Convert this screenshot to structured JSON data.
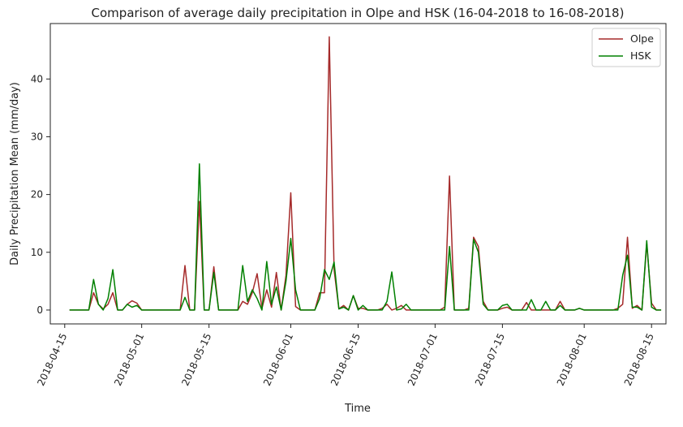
{
  "chart_data": {
    "type": "line",
    "title": "Comparison of average daily precipitation in Olpe and HSK (16-04-2018 to 16-08-2018)",
    "xlabel": "Time",
    "ylabel": "Daily Precipitation Mean (mm/day)",
    "x_start": "2018-04-16",
    "xlim": [
      "2018-04-12",
      "2018-08-18"
    ],
    "ylim": [
      -2.4,
      49.6
    ],
    "y_ticks": [
      0,
      10,
      20,
      30,
      40
    ],
    "x_ticks": [
      "2018-04-15",
      "2018-05-01",
      "2018-05-15",
      "2018-06-01",
      "2018-06-15",
      "2018-07-01",
      "2018-07-15",
      "2018-08-01",
      "2018-08-15"
    ],
    "grid": false,
    "legend": "top-right",
    "series": [
      {
        "name": "Olpe",
        "color": "#a52a2a",
        "values": [
          0,
          0,
          0,
          0,
          0,
          3,
          1,
          0.2,
          1,
          3,
          0,
          0,
          1,
          1.6,
          1.2,
          0,
          0,
          0,
          0,
          0,
          0,
          0,
          0,
          0,
          7.7,
          0,
          0,
          18.8,
          0,
          0,
          7.5,
          0,
          0,
          0,
          0,
          0,
          1.5,
          1,
          3,
          6.3,
          0.3,
          3.5,
          0.5,
          6.5,
          0,
          6,
          20.3,
          0.6,
          0,
          0,
          0,
          0,
          3,
          3,
          47.3,
          7,
          0.2,
          0.8,
          0,
          2.5,
          0.3,
          0.3,
          0,
          0,
          0,
          0.3,
          1,
          0,
          0.3,
          0.8,
          0,
          0,
          0,
          0,
          0,
          0,
          0,
          0,
          0.5,
          23.2,
          0,
          0,
          0,
          0.3,
          12.6,
          11,
          1.5,
          0,
          0,
          0,
          0.3,
          0.5,
          0,
          0,
          0,
          1.3,
          0,
          0,
          0,
          0,
          0,
          0,
          1.5,
          0,
          0,
          0,
          0.3,
          0,
          0,
          0,
          0,
          0,
          0,
          0,
          0.3,
          1,
          12.6,
          0.3,
          0.8,
          0,
          11.5,
          1.2,
          0,
          0
        ]
      },
      {
        "name": "HSK",
        "color": "#008000",
        "values": [
          0,
          0,
          0,
          0,
          0,
          5.3,
          1,
          0,
          2,
          7,
          0,
          0,
          1,
          0.5,
          0.8,
          0,
          0,
          0,
          0,
          0,
          0,
          0,
          0,
          0,
          2.2,
          0,
          0,
          25.3,
          0,
          0,
          6.5,
          0,
          0,
          0,
          0,
          0,
          7.7,
          1.5,
          3.5,
          2,
          0,
          8.4,
          1,
          4,
          0,
          5,
          12.4,
          3.5,
          0,
          0,
          0,
          0,
          2,
          7,
          5.3,
          8.3,
          0.2,
          0.5,
          0,
          2.5,
          0,
          0.8,
          0,
          0,
          0,
          0,
          1.5,
          6.6,
          0,
          0.2,
          1,
          0,
          0,
          0,
          0,
          0,
          0,
          0,
          0,
          11,
          0,
          0,
          0,
          0,
          12.2,
          10,
          1,
          0,
          0,
          0,
          0.8,
          1,
          0,
          0,
          0,
          0,
          1.8,
          0,
          0,
          1.5,
          0,
          0,
          0.8,
          0,
          0,
          0,
          0.3,
          0,
          0,
          0,
          0,
          0,
          0,
          0,
          0,
          6,
          9.5,
          0.5,
          0.5,
          0,
          12,
          0.5,
          0,
          0
        ]
      }
    ]
  }
}
